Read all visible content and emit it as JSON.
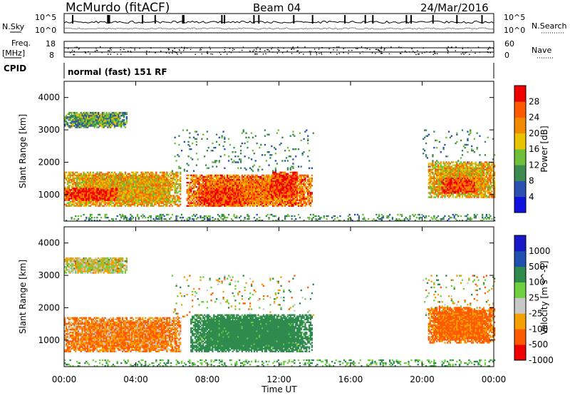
{
  "header": {
    "station": "McMurdo (fitACF)",
    "beam": "Beam 04",
    "date": "24/Mar/2016"
  },
  "noise_panel": {
    "left_label": "N.Sky",
    "right_label": "N.Search",
    "left_ticks": [
      "10^5",
      "10^0"
    ],
    "right_ticks": [
      "10^5",
      "10^0"
    ]
  },
  "freq_panel": {
    "left_label": "Freq.",
    "left_unit": "[MHz]",
    "right_label": "Nave",
    "left_ticks": [
      "18",
      "8"
    ],
    "right_ticks": [
      "60",
      "0"
    ]
  },
  "cpid": {
    "label": "CPID",
    "mode_text": "normal (fast) 151 RF"
  },
  "colors": {
    "power": [
      "#1010e0",
      "#2a50b0",
      "#3c8a50",
      "#6fbf3a",
      "#e8c400",
      "#f28a00",
      "#ff5a00",
      "#ee0000"
    ],
    "velocity": [
      "#ee0000",
      "#ff5a00",
      "#f5a000",
      "#c8c8c8",
      "#6fcf40",
      "#2f8a4e",
      "#2050b0",
      "#1818c8"
    ]
  },
  "chart_data": [
    {
      "type": "heatmap",
      "title": "Power",
      "xlabel": "Time UT",
      "ylabel": "Slant Range [km]",
      "xlim": [
        "00:00",
        "24:00"
      ],
      "ylim": [
        180,
        4500
      ],
      "x_ticks": [
        "00:00",
        "04:00",
        "08:00",
        "12:00",
        "16:00",
        "20:00",
        "00:00"
      ],
      "y_ticks": [
        1000,
        2000,
        3000,
        4000
      ],
      "colorbar": {
        "label": "Power [dB]",
        "ticks": [
          4,
          8,
          12,
          16,
          20,
          24,
          28
        ]
      },
      "regions": [
        {
          "t_start": 0.0,
          "t_end": 6.5,
          "range_start": 600,
          "range_end": 1700,
          "value_db": 20
        },
        {
          "t_start": 0.0,
          "t_end": 3.0,
          "range_start": 800,
          "range_end": 1200,
          "value_db": 28
        },
        {
          "t_start": 0.0,
          "t_end": 3.5,
          "range_start": 3050,
          "range_end": 3550,
          "value_db": 12
        },
        {
          "t_start": 6.8,
          "t_end": 13.8,
          "range_start": 600,
          "range_end": 1600,
          "value_db": 24
        },
        {
          "t_start": 7.5,
          "t_end": 10.0,
          "range_start": 600,
          "range_end": 1200,
          "value_db": 28
        },
        {
          "t_start": 11.5,
          "t_end": 13.0,
          "range_start": 900,
          "range_end": 1700,
          "value_db": 28
        },
        {
          "t_start": 20.3,
          "t_end": 24.0,
          "range_start": 900,
          "range_end": 2000,
          "value_db": 20
        },
        {
          "t_start": 21.0,
          "t_end": 23.0,
          "range_start": 1000,
          "range_end": 1500,
          "value_db": 28
        }
      ]
    },
    {
      "type": "heatmap",
      "title": "Velocity",
      "xlabel": "Time UT",
      "ylabel": "Slant Range [km]",
      "xlim": [
        "00:00",
        "24:00"
      ],
      "ylim": [
        180,
        4500
      ],
      "x_ticks": [
        "00:00",
        "04:00",
        "08:00",
        "12:00",
        "16:00",
        "20:00",
        "00:00"
      ],
      "y_ticks": [
        1000,
        2000,
        3000,
        4000
      ],
      "colorbar": {
        "label": "Velocity [m s^-1]",
        "ticks": [
          1000,
          500,
          100,
          25,
          -25,
          -100,
          -500,
          -1000
        ]
      },
      "regions": [
        {
          "t_start": 0.0,
          "t_end": 6.5,
          "range_start": 600,
          "range_end": 1700,
          "value_ms": -100
        },
        {
          "t_start": 0.0,
          "t_end": 3.5,
          "range_start": 3050,
          "range_end": 3550,
          "value_ms": 0
        },
        {
          "t_start": 7.0,
          "t_end": 13.8,
          "range_start": 600,
          "range_end": 1800,
          "value_ms": 200
        },
        {
          "t_start": 20.3,
          "t_end": 24.0,
          "range_start": 900,
          "range_end": 2000,
          "value_ms": -150
        }
      ]
    }
  ]
}
